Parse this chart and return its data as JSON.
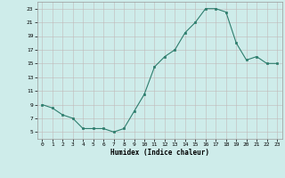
{
  "x": [
    0,
    1,
    2,
    3,
    4,
    5,
    6,
    7,
    8,
    9,
    10,
    11,
    12,
    13,
    14,
    15,
    16,
    17,
    18,
    19,
    20,
    21,
    22,
    23
  ],
  "y": [
    9,
    8.5,
    7.5,
    7,
    5.5,
    5.5,
    5.5,
    5,
    5.5,
    8,
    10.5,
    14.5,
    16,
    17,
    19.5,
    21,
    23,
    23,
    22.5,
    18,
    15.5,
    16,
    15,
    15
  ],
  "xlabel": "Humidex (Indice chaleur)",
  "line_color": "#2d7d6d",
  "bg_color": "#ceecea",
  "grid_color_major": "#c0b8b8",
  "grid_color_minor": "#dcd4d4",
  "ylim": [
    4,
    24
  ],
  "xlim": [
    -0.5,
    23.5
  ],
  "yticks": [
    5,
    7,
    9,
    11,
    13,
    15,
    17,
    19,
    21,
    23
  ],
  "xticks": [
    0,
    1,
    2,
    3,
    4,
    5,
    6,
    7,
    8,
    9,
    10,
    11,
    12,
    13,
    14,
    15,
    16,
    17,
    18,
    19,
    20,
    21,
    22,
    23
  ]
}
